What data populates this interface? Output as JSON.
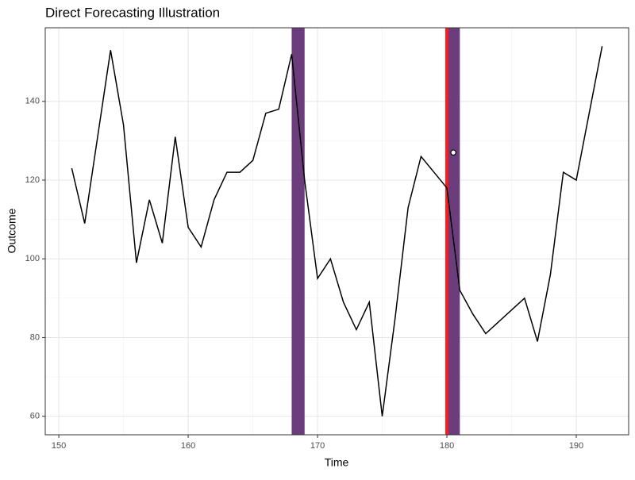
{
  "chart_data": {
    "type": "line",
    "title": "Direct Forecasting Illustration",
    "x_label": "Time",
    "y_label": "Outcome",
    "x": [
      151,
      152,
      153,
      154,
      155,
      156,
      157,
      158,
      159,
      160,
      161,
      162,
      163,
      164,
      165,
      166,
      167,
      168,
      169,
      170,
      171,
      172,
      173,
      174,
      175,
      176,
      177,
      178,
      179,
      180,
      181,
      182,
      183,
      184,
      185,
      186,
      187,
      188,
      189,
      190,
      191,
      192
    ],
    "series": [
      {
        "color": "#000000",
        "values": [
          123,
          109,
          131,
          153,
          134,
          99,
          115,
          104,
          131,
          108,
          103,
          115,
          122,
          122,
          125,
          137,
          138,
          152,
          120,
          95,
          100,
          89,
          82,
          89,
          60,
          85,
          113,
          126,
          122,
          118,
          92,
          86,
          81,
          84,
          87,
          90,
          79,
          96,
          122,
          120,
          137,
          154
        ]
      }
    ],
    "shaded_regions": [
      {
        "xmin": 168,
        "xmax": 169,
        "color": "#6b3d7d"
      },
      {
        "xmin": 180,
        "xmax": 181,
        "color": "#6b3d7d"
      }
    ],
    "vline": {
      "x": 180,
      "color": "#ff1a1a"
    },
    "forecast_point": {
      "x": 180.5,
      "y": 127
    },
    "xlim": [
      148.95,
      194.05
    ],
    "ylim": [
      55.3,
      158.7
    ],
    "xticks": [
      150,
      160,
      170,
      180,
      190
    ],
    "yticks": [
      60,
      80,
      100,
      120,
      140
    ],
    "grid": true
  }
}
